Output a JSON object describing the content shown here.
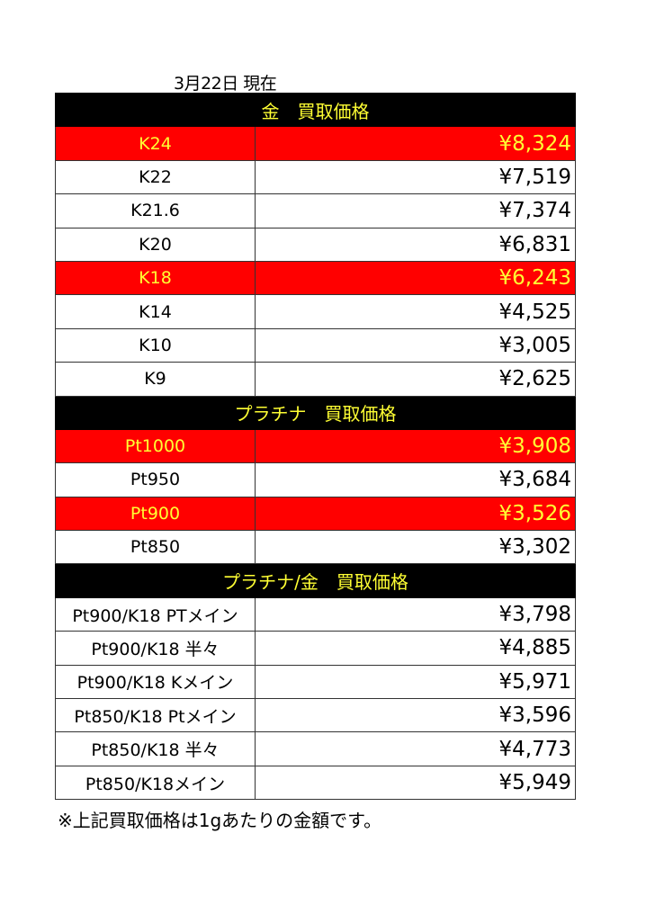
{
  "date_label": "3月22日 現在",
  "sections": [
    {
      "title": "金　買取価格",
      "rows": [
        {
          "name": "K24",
          "price": "¥8,324",
          "highlight": true
        },
        {
          "name": "K22",
          "price": "¥7,519",
          "highlight": false
        },
        {
          "name": "K21.6",
          "price": "¥7,374",
          "highlight": false
        },
        {
          "name": "K20",
          "price": "¥6,831",
          "highlight": false
        },
        {
          "name": "K18",
          "price": "¥6,243",
          "highlight": true
        },
        {
          "name": "K14",
          "price": "¥4,525",
          "highlight": false
        },
        {
          "name": "K10",
          "price": "¥3,005",
          "highlight": false
        },
        {
          "name": "K9",
          "price": "¥2,625",
          "highlight": false
        }
      ]
    },
    {
      "title": "プラチナ　買取価格",
      "rows": [
        {
          "name": "Pt1000",
          "price": "¥3,908",
          "highlight": true
        },
        {
          "name": "Pt950",
          "price": "¥3,684",
          "highlight": false
        },
        {
          "name": "Pt900",
          "price": "¥3,526",
          "highlight": true
        },
        {
          "name": "Pt850",
          "price": "¥3,302",
          "highlight": false
        }
      ]
    },
    {
      "title": "プラチナ/金　買取価格",
      "rows": [
        {
          "name": "Pt900/K18 PTメイン",
          "price": "¥3,798",
          "highlight": false
        },
        {
          "name": "Pt900/K18 半々",
          "price": "¥4,885",
          "highlight": false
        },
        {
          "name": "Pt900/K18 Kメイン",
          "price": "¥5,971",
          "highlight": false
        },
        {
          "name": "Pt850/K18 Ptメイン",
          "price": "¥3,596",
          "highlight": false
        },
        {
          "name": "Pt850/K18 半々",
          "price": "¥4,773",
          "highlight": false
        },
        {
          "name": "Pt850/K18メイン",
          "price": "¥5,949",
          "highlight": false
        }
      ]
    }
  ],
  "footnote": "※上記買取価格は1gあたりの金額です。",
  "colors": {
    "header_bg": "#000000",
    "header_text": "#ffff33",
    "highlight_bg": "#ff0000",
    "highlight_text": "#ffff33"
  }
}
